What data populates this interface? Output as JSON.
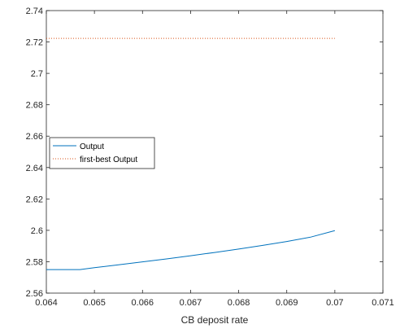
{
  "chart_data": {
    "type": "line",
    "title": "",
    "xlabel": "CB deposit rate",
    "ylabel": "",
    "xlim": [
      0.064,
      0.071
    ],
    "ylim": [
      2.56,
      2.74
    ],
    "xticks": [
      0.064,
      0.065,
      0.066,
      0.067,
      0.068,
      0.069,
      0.07,
      0.071
    ],
    "xtick_labels": [
      "0.064",
      "0.065",
      "0.066",
      "0.067",
      "0.068",
      "0.069",
      "0.07",
      "0.071"
    ],
    "yticks": [
      2.56,
      2.58,
      2.6,
      2.62,
      2.64,
      2.66,
      2.68,
      2.7,
      2.72,
      2.74
    ],
    "ytick_labels": [
      "2.56",
      "2.58",
      "2.6",
      "2.62",
      "2.64",
      "2.66",
      "2.68",
      "2.7",
      "2.72",
      "2.74"
    ],
    "grid": false,
    "legend_position": "center-left",
    "series": [
      {
        "name": "Output",
        "color": "#0072BD",
        "style": "solid",
        "x": [
          0.064,
          0.0647,
          0.065,
          0.0655,
          0.066,
          0.0665,
          0.067,
          0.0675,
          0.068,
          0.0685,
          0.069,
          0.0695,
          0.07
        ],
        "y": [
          2.575,
          2.575,
          2.5762,
          2.578,
          2.5799,
          2.5818,
          2.5838,
          2.5859,
          2.5881,
          2.5904,
          2.5929,
          2.5957,
          2.5998
        ]
      },
      {
        "name": "first-best Output",
        "color": "#D95319",
        "style": "dotted",
        "x": [
          0.064,
          0.07
        ],
        "y": [
          2.7223,
          2.7223
        ]
      }
    ]
  }
}
